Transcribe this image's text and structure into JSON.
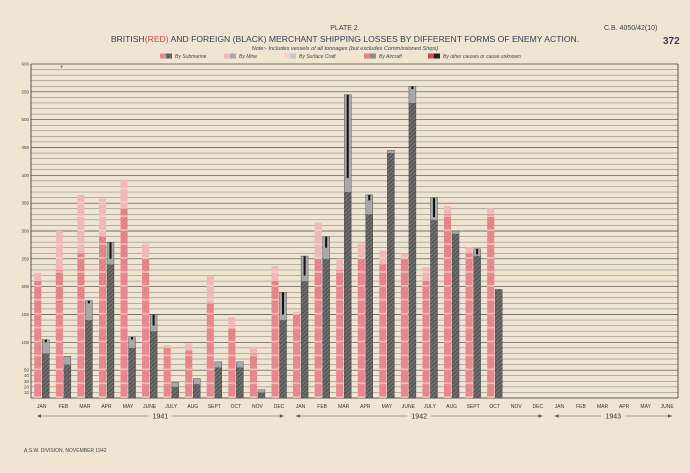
{
  "header": {
    "plate": "PLATE 2.",
    "reference": "C.B. 4050/42(10)",
    "page_number": "372",
    "title_part1": "BRITISH",
    "title_red": "(RED)",
    "title_part2": " AND FOREIGN ",
    "title_black": "(BLACK)",
    "title_part3": " MERCHANT SHIPPING LOSSES BY DIFFERENT FORMS OF ENEMY ACTION.",
    "note": "Note:- Includes vessels of all tonnages (but excludes Commissioned Ships)"
  },
  "footer": {
    "division": "A.S.W. DIVISION, NOVEMBER 1942"
  },
  "colors": {
    "background": "#efe5d2",
    "british": "#e8888c",
    "british_light": "#f2b8b8",
    "foreign": "#6e6e6e",
    "foreign_light": "#a8a8a8",
    "grid": "#4a4a4a",
    "title_ink": "#3a3d55"
  },
  "chart_data": {
    "type": "bar",
    "stacked": true,
    "title": "BRITISH (RED) AND FOREIGN (BLACK) MERCHANT SHIPPING LOSSES BY DIFFERENT FORMS OF ENEMY ACTION.",
    "note": "Note:- Includes vessels of all tonnages (but excludes Commissioned Ships)",
    "legend": [
      "By Submarine",
      "By Mine",
      "By Surface Craft",
      "By Aircraft",
      "By other causes or cause unknown"
    ],
    "legend_position": "top",
    "grid": true,
    "ylim": [
      0,
      600
    ],
    "y_ticks": [
      10,
      20,
      30,
      40,
      50,
      100,
      150,
      200,
      250,
      300,
      350,
      400,
      450,
      500,
      550,
      600
    ],
    "categories": [
      "JAN",
      "FEB",
      "MAR",
      "APR",
      "MAY",
      "JUNE",
      "JULY",
      "AUG",
      "SEPT",
      "OCT",
      "NOV",
      "DEC",
      "JAN",
      "FEB",
      "MAR",
      "APR",
      "MAY",
      "JUNE",
      "JULY",
      "AUG",
      "SEPT",
      "OCT",
      "NOV",
      "DEC",
      "JAN",
      "FEB",
      "MAR",
      "APR",
      "MAY",
      "JUNE"
    ],
    "year_labels": [
      {
        "label": "1941",
        "from": 0,
        "to": 11
      },
      {
        "label": "1942",
        "from": 12,
        "to": 23
      },
      {
        "label": "1943",
        "from": 24,
        "to": 29
      }
    ],
    "series": [
      {
        "name": "British",
        "color": "red",
        "totals": [
          225,
          300,
          365,
          358,
          392,
          278,
          95,
          98,
          220,
          145,
          92,
          237,
          155,
          315,
          250,
          280,
          265,
          260,
          235,
          345,
          270,
          340,
          null,
          null,
          null,
          null,
          null,
          null,
          null,
          null
        ],
        "by_submarine": [
          140,
          170,
          170,
          190,
          240,
          210,
          85,
          55,
          145,
          100,
          65,
          170,
          130,
          170,
          195,
          230,
          190,
          180,
          165,
          250,
          220,
          300,
          null,
          null,
          null,
          null,
          null,
          null,
          null,
          null
        ],
        "by_aircraft": [
          70,
          60,
          90,
          100,
          100,
          40,
          5,
          30,
          25,
          25,
          15,
          40,
          20,
          80,
          35,
          20,
          50,
          70,
          45,
          80,
          40,
          30,
          null,
          null,
          null,
          null,
          null,
          null,
          null,
          null
        ]
      },
      {
        "name": "Foreign",
        "color": "black",
        "totals": [
          105,
          75,
          175,
          280,
          110,
          150,
          28,
          35,
          65,
          65,
          15,
          190,
          255,
          290,
          545,
          365,
          445,
          560,
          360,
          300,
          268,
          195,
          null,
          null,
          null,
          null,
          null,
          null,
          null,
          null
        ],
        "by_submarine": [
          80,
          60,
          140,
          240,
          90,
          120,
          20,
          25,
          55,
          55,
          10,
          140,
          210,
          250,
          370,
          330,
          440,
          530,
          320,
          295,
          255,
          195,
          null,
          null,
          null,
          null,
          null,
          null,
          null,
          null
        ],
        "by_other": [
          5,
          0,
          5,
          30,
          5,
          20,
          0,
          0,
          0,
          0,
          0,
          40,
          35,
          20,
          150,
          10,
          0,
          5,
          35,
          0,
          10,
          0,
          null,
          null,
          null,
          null,
          null,
          null,
          null,
          null
        ]
      }
    ]
  }
}
